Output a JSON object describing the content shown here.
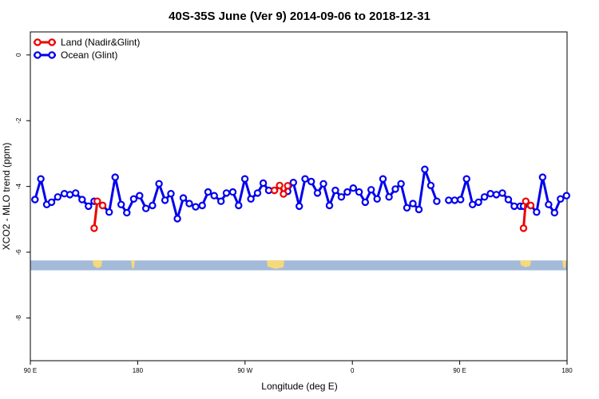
{
  "chart_data": {
    "type": "line",
    "title": "40S-35S June (Ver 9)   2014-09-06 to 2018-12-31",
    "xlabel": "Longitude (deg E)",
    "ylabel": "XCO2 - MLO trend (ppm)",
    "xlim": [
      90,
      450
    ],
    "ylim": [
      -9.3,
      0.7
    ],
    "x_ticks": [
      {
        "value": 90,
        "label": "90 E"
      },
      {
        "value": 162,
        "label": "180"
      },
      {
        "value": 234,
        "label": "90 W"
      },
      {
        "value": 306,
        "label": "0"
      },
      {
        "value": 378,
        "label": "90 E"
      },
      {
        "value": 450,
        "label": "180"
      }
    ],
    "y_ticks": [
      0,
      -2,
      -4,
      -6,
      -8
    ],
    "grid": false,
    "legend_position": "top-left",
    "land_band": {
      "y_top": -6.25,
      "y_bottom": -6.55,
      "color": "#a3bad9",
      "land_color": "#f5d97a"
    },
    "series": [
      {
        "name": "Land (Nadir&Glint)",
        "color": "#ee0000",
        "x": [
          132.8,
          134.9,
          138.5
        ],
        "y": [
          -5.27,
          -4.45,
          -4.58
        ]
      },
      {
        "name": "Land (Nadir&Glint)",
        "color": "#ee0000",
        "x": [
          253.7,
          257.2,
          259.8,
          262.6
        ],
        "y": [
          -4.12,
          -3.97,
          -4.23,
          -3.98
        ]
      },
      {
        "name": "Land (Nadir&Glint)",
        "color": "#ee0000",
        "x": [
          420.8,
          422.3,
          425.6
        ],
        "y": [
          -5.27,
          -4.45,
          -4.58
        ]
      },
      {
        "name": "Ocean (Glint)",
        "color": "#0000ee",
        "x": [
          93.1,
          97.0,
          101.0,
          104.2,
          108.4,
          112.8,
          116.5,
          120.4,
          124.7,
          129.0,
          132.8
        ],
        "y": [
          -4.4,
          -3.77,
          -4.55,
          -4.48,
          -4.32,
          -4.22,
          -4.25,
          -4.2,
          -4.4,
          -4.6,
          -4.45
        ]
      },
      {
        "name": "Ocean (Glint)",
        "color": "#0000ee",
        "x": [
          138.5,
          142.9,
          146.9,
          150.9,
          154.7,
          159.3,
          163.3,
          167.5,
          171.9,
          176.3,
          180.3,
          184.3,
          188.6,
          192.6,
          196.6,
          200.9,
          205.3,
          209.2,
          213.3,
          217.9,
          221.5,
          225.8,
          229.7,
          233.9,
          237.9,
          242.4,
          246.2,
          249.9,
          253.7
        ],
        "y": [
          -4.58,
          -4.78,
          -3.72,
          -4.55,
          -4.8,
          -4.38,
          -4.28,
          -4.67,
          -4.58,
          -3.92,
          -4.42,
          -4.22,
          -4.98,
          -4.35,
          -4.52,
          -4.62,
          -4.58,
          -4.17,
          -4.28,
          -4.45,
          -4.2,
          -4.17,
          -4.58,
          -3.77,
          -4.38,
          -4.2,
          -3.9,
          -4.12,
          -4.12
        ]
      },
      {
        "name": "Ocean (Glint)",
        "color": "#0000ee",
        "x": [
          262.6,
          266.4,
          270.4,
          274.3,
          278.4,
          282.6,
          286.6,
          290.6,
          294.6,
          298.6,
          302.6,
          306.6,
          310.5,
          314.6,
          318.6,
          322.6,
          326.5,
          330.6,
          334.8,
          338.6,
          342.6,
          346.6,
          350.6,
          354.6,
          358.6,
          362.6
        ],
        "y": [
          -4.15,
          -3.88,
          -4.6,
          -3.77,
          -3.85,
          -4.2,
          -3.92,
          -4.58,
          -4.12,
          -4.32,
          -4.17,
          -4.05,
          -4.17,
          -4.48,
          -4.1,
          -4.38,
          -3.77,
          -4.32,
          -4.08,
          -3.92,
          -4.65,
          -4.52,
          -4.7,
          -3.48,
          -3.97,
          -4.45
        ]
      },
      {
        "name": "Ocean (Glint)",
        "color": "#0000ee",
        "x": [
          370.6,
          374.6,
          378.6,
          382.6,
          386.6,
          390.6,
          394.6,
          398.6,
          402.6,
          406.6,
          410.6,
          414.6,
          418.6,
          420.8
        ],
        "y": [
          -4.42,
          -4.42,
          -4.4,
          -3.77,
          -4.55,
          -4.48,
          -4.32,
          -4.22,
          -4.25,
          -4.2,
          -4.4,
          -4.6,
          -4.6,
          -4.6
        ]
      },
      {
        "name": "Ocean (Glint)",
        "color": "#0000ee",
        "x": [
          425.6,
          429.6,
          433.6,
          437.6,
          441.6,
          445.6,
          449.6
        ],
        "y": [
          -4.58,
          -4.78,
          -3.72,
          -4.55,
          -4.8,
          -4.38,
          -4.28
        ]
      }
    ]
  }
}
